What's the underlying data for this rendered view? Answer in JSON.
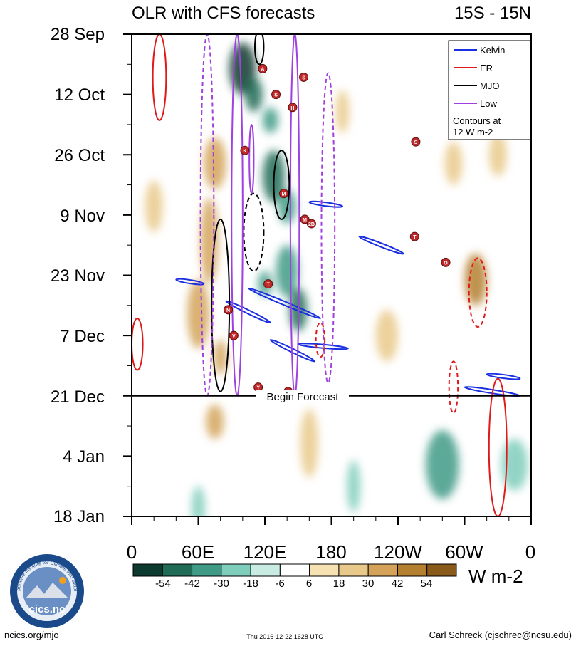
{
  "chart_data": {
    "type": "heatmap",
    "title": "OLR with CFS forecasts",
    "region": "15S - 15N",
    "y_ticks": [
      "28 Sep",
      "12 Oct",
      "26 Oct",
      "9 Nov",
      "23 Nov",
      "7 Dec",
      "21 Dec",
      "4 Jan",
      "18 Jan"
    ],
    "x_ticks": [
      "0",
      "60E",
      "120E",
      "180",
      "120W",
      "60W",
      "0"
    ],
    "x_range_deg_east": [
      0,
      360
    ],
    "time_range_days": [
      0,
      112
    ],
    "forecast_start": {
      "label": "Begin Forecast",
      "date": "21 Dec",
      "day": 84
    },
    "colorbar": {
      "ticks": [
        "-54",
        "-42",
        "-30",
        "-18",
        "-6",
        "6",
        "18",
        "30",
        "42",
        "54"
      ],
      "units": "W m-2",
      "colors": [
        "#0d3a2e",
        "#1f6b55",
        "#3f9a86",
        "#7fcdbb",
        "#c8ebe2",
        "#ffffff",
        "#f6e1b3",
        "#e9c98a",
        "#d4a359",
        "#b47f2e",
        "#8a5a1a"
      ]
    },
    "legend": {
      "items": [
        {
          "label": "Kelvin",
          "color": "#1a2fe0"
        },
        {
          "label": "ER",
          "color": "#e01a1a"
        },
        {
          "label": "MJO",
          "color": "#000000"
        },
        {
          "label": "Low",
          "color": "#a040e0"
        }
      ],
      "note_line1": "Contours at",
      "note_line2": "12 W m-2"
    },
    "anomaly_blobs": [
      {
        "lon": 100,
        "day": 8,
        "rlon": 12,
        "rday": 6,
        "v": -50
      },
      {
        "lon": 110,
        "day": 14,
        "rlon": 8,
        "rday": 4,
        "v": -40
      },
      {
        "lon": 125,
        "day": 20,
        "rlon": 7,
        "rday": 3,
        "v": -30
      },
      {
        "lon": 128,
        "day": 33,
        "rlon": 10,
        "rday": 6,
        "v": -45
      },
      {
        "lon": 140,
        "day": 40,
        "rlon": 8,
        "rday": 4,
        "v": -35
      },
      {
        "lon": 140,
        "day": 55,
        "rlon": 10,
        "rday": 6,
        "v": -30
      },
      {
        "lon": 150,
        "day": 64,
        "rlon": 8,
        "rday": 5,
        "v": -40
      },
      {
        "lon": 120,
        "day": 58,
        "rlon": 6,
        "rday": 3,
        "v": -25
      },
      {
        "lon": 280,
        "day": 100,
        "rlon": 15,
        "rday": 8,
        "v": -30
      },
      {
        "lon": 345,
        "day": 100,
        "rlon": 12,
        "rday": 6,
        "v": -20
      },
      {
        "lon": 200,
        "day": 105,
        "rlon": 6,
        "rday": 6,
        "v": -20
      },
      {
        "lon": 60,
        "day": 110,
        "rlon": 6,
        "rday": 5,
        "v": -20
      },
      {
        "lon": 75,
        "day": 30,
        "rlon": 10,
        "rday": 6,
        "v": 30
      },
      {
        "lon": 70,
        "day": 48,
        "rlon": 8,
        "rday": 10,
        "v": 35
      },
      {
        "lon": 60,
        "day": 65,
        "rlon": 10,
        "rday": 8,
        "v": 28
      },
      {
        "lon": 80,
        "day": 75,
        "rlon": 6,
        "rday": 4,
        "v": 25
      },
      {
        "lon": 75,
        "day": 90,
        "rlon": 8,
        "rday": 4,
        "v": 25
      },
      {
        "lon": 310,
        "day": 57,
        "rlon": 10,
        "rday": 6,
        "v": 40
      },
      {
        "lon": 290,
        "day": 30,
        "rlon": 8,
        "rday": 5,
        "v": 20
      },
      {
        "lon": 190,
        "day": 18,
        "rlon": 6,
        "rday": 5,
        "v": 20
      },
      {
        "lon": 160,
        "day": 95,
        "rlon": 8,
        "rday": 8,
        "v": 18
      },
      {
        "lon": 20,
        "day": 40,
        "rlon": 8,
        "rday": 6,
        "v": 18
      },
      {
        "lon": 230,
        "day": 70,
        "rlon": 10,
        "rday": 6,
        "v": 15
      },
      {
        "lon": 330,
        "day": 28,
        "rlon": 8,
        "rday": 5,
        "v": 15
      }
    ],
    "kelvin_contours": [
      {
        "lon1": 105,
        "day1": 59,
        "lon2": 170,
        "day2": 66
      },
      {
        "lon1": 85,
        "day1": 62,
        "lon2": 125,
        "day2": 67
      },
      {
        "lon1": 40,
        "day1": 57,
        "lon2": 65,
        "day2": 58
      },
      {
        "lon1": 125,
        "day1": 71,
        "lon2": 165,
        "day2": 76
      },
      {
        "lon1": 150,
        "day1": 72,
        "lon2": 195,
        "day2": 73
      },
      {
        "lon1": 205,
        "day1": 47,
        "lon2": 245,
        "day2": 51
      },
      {
        "lon1": 300,
        "day1": 82,
        "lon2": 350,
        "day2": 84
      },
      {
        "lon1": 320,
        "day1": 79,
        "lon2": 350,
        "day2": 80
      },
      {
        "lon1": 160,
        "day1": 39,
        "lon2": 190,
        "day2": 40
      }
    ],
    "er_contours": [
      {
        "lon": 25,
        "day": 10,
        "rlon": 6,
        "rday": 10,
        "dashed": false
      },
      {
        "lon": 312,
        "day": 60,
        "rlon": 8,
        "rday": 8,
        "dashed": true
      },
      {
        "lon": 170,
        "day": 71,
        "rlon": 4,
        "rday": 4,
        "dashed": true
      },
      {
        "lon": 330,
        "day": 96,
        "rlon": 8,
        "rday": 16,
        "dashed": false
      },
      {
        "lon": 290,
        "day": 82,
        "rlon": 4,
        "rday": 6,
        "dashed": true
      },
      {
        "lon": 5,
        "day": 72,
        "rlon": 5,
        "rday": 6,
        "dashed": false
      }
    ],
    "mjo_contours": [
      {
        "lon": 115,
        "day": 3,
        "rlon": 4,
        "rday": 4,
        "dashed": false
      },
      {
        "lon": 135,
        "day": 35,
        "rlon": 7,
        "rday": 8,
        "dashed": false
      },
      {
        "lon": 110,
        "day": 46,
        "rlon": 9,
        "rday": 9,
        "dashed": true
      },
      {
        "lon": 80,
        "day": 63,
        "rlon": 8,
        "rday": 20,
        "dashed": false
      }
    ],
    "low_contours": [
      {
        "lon": 68,
        "day": 42,
        "rlon": 6,
        "rday": 42,
        "dashed": true
      },
      {
        "lon": 95,
        "day": 42,
        "rlon": 5,
        "rday": 42,
        "dashed": false
      },
      {
        "lon": 147,
        "day": 42,
        "rlon": 4,
        "rday": 42,
        "dashed": false
      },
      {
        "lon": 177,
        "day": 45,
        "rlon": 6,
        "rday": 36,
        "dashed": true
      },
      {
        "lon": 108,
        "day": 29,
        "rlon": 2,
        "rday": 8,
        "dashed": false
      }
    ],
    "tc_markers": [
      {
        "lon": 118,
        "day": 8,
        "label": "A"
      },
      {
        "lon": 155,
        "day": 10,
        "label": "S"
      },
      {
        "lon": 130,
        "day": 14,
        "label": "S"
      },
      {
        "lon": 145,
        "day": 17,
        "label": "H"
      },
      {
        "lon": 102,
        "day": 27,
        "label": "K"
      },
      {
        "lon": 137,
        "day": 37,
        "label": "M"
      },
      {
        "lon": 156,
        "day": 43,
        "label": "M"
      },
      {
        "lon": 162,
        "day": 44,
        "label": "2B"
      },
      {
        "lon": 255,
        "day": 47,
        "label": "T"
      },
      {
        "lon": 283,
        "day": 53,
        "label": "O"
      },
      {
        "lon": 123,
        "day": 58,
        "label": "T"
      },
      {
        "lon": 87,
        "day": 64,
        "label": "N"
      },
      {
        "lon": 92,
        "day": 70,
        "label": "V"
      },
      {
        "lon": 114,
        "day": 82,
        "label": "Y"
      },
      {
        "lon": 141,
        "day": 83,
        "label": "50"
      },
      {
        "lon": 256,
        "day": 25,
        "label": "S"
      }
    ]
  },
  "footer": {
    "left": "ncics.org/mjo",
    "center": "Thu 2016-12-22 1628 UTC",
    "right": "Carl Schreck (cjschrec@ncsu.edu)"
  },
  "logo": {
    "text": "cics.nc",
    "ring_text": "Cooperative Institute for Climate and Satellites"
  }
}
